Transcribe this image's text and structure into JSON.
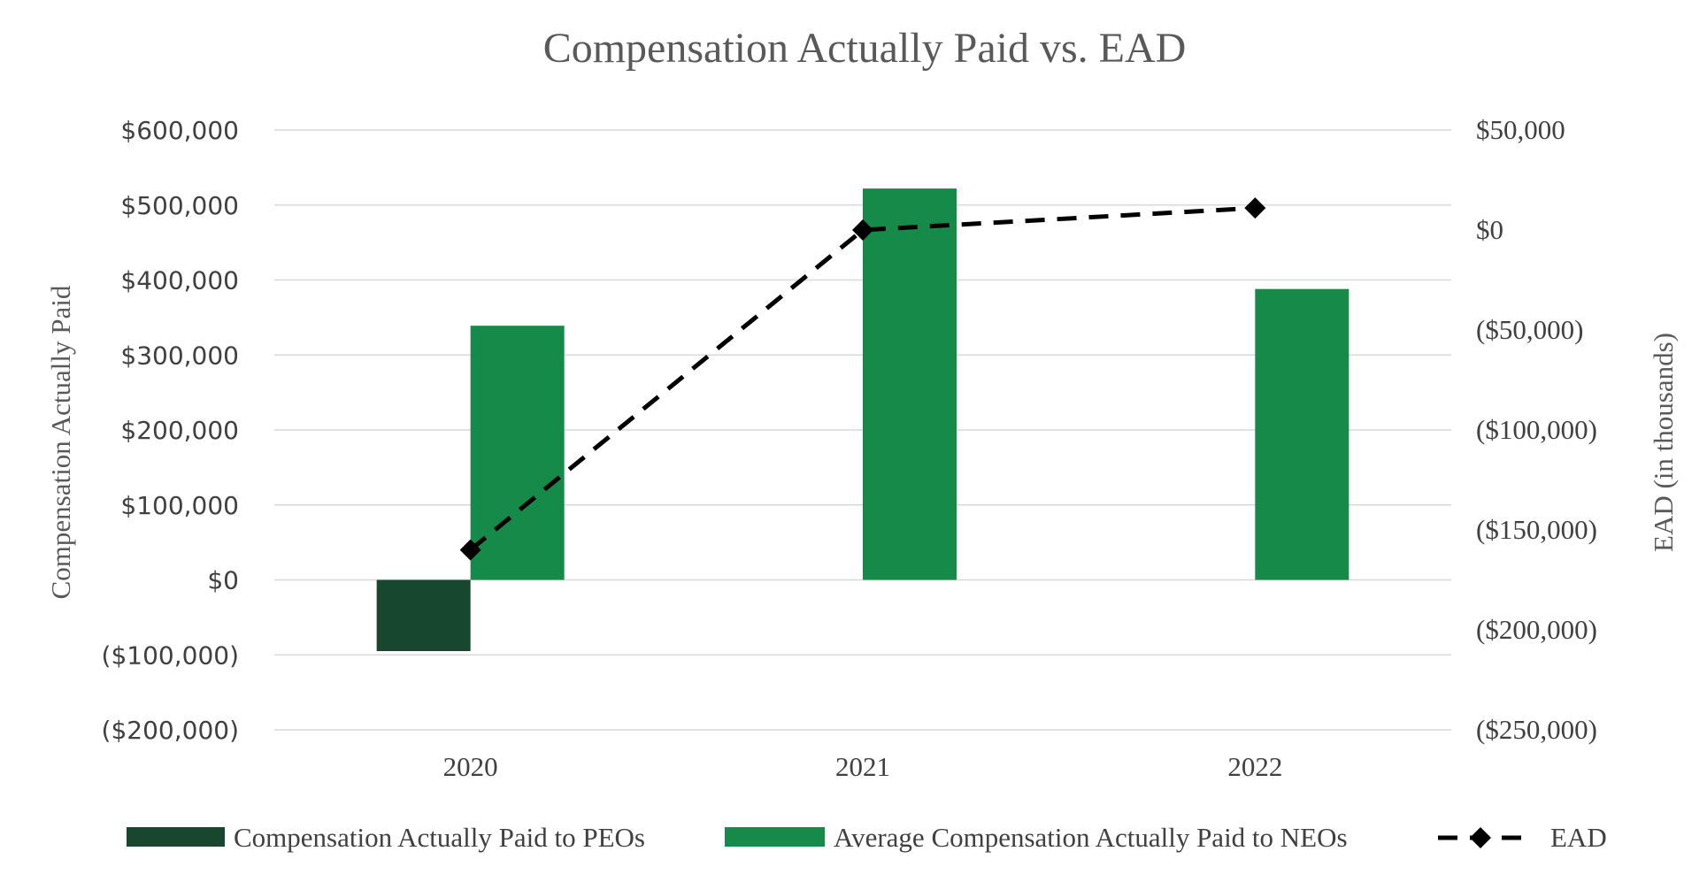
{
  "chart_data": {
    "type": "bar",
    "title": "Compensation Actually Paid vs. EAD",
    "categories": [
      "2020",
      "2021",
      "2022"
    ],
    "ylabel": "Compensation Actually Paid",
    "y2label": "EAD (in thousands)",
    "ylim": [
      -200000,
      600000
    ],
    "y2lim": [
      -250000,
      50000
    ],
    "yticks": [
      "$600,000",
      "$500,000",
      "$400,000",
      "$300,000",
      "$200,000",
      "$100,000",
      "$0",
      "($100,000)",
      "($200,000)"
    ],
    "y2ticks": [
      "$50,000",
      "$0",
      "($50,000)",
      "($100,000)",
      "($150,000)",
      "($200,000)",
      "($250,000)"
    ],
    "grid": true,
    "legend_position": "bottom",
    "series": [
      {
        "name": "Compensation Actually Paid to PEOs",
        "type": "bar",
        "axis": "left",
        "color": "#17472f",
        "values": [
          -95000,
          null,
          null
        ]
      },
      {
        "name": "Average Compensation Actually Paid to NEOs",
        "type": "bar",
        "axis": "left",
        "color": "#168a48",
        "values": [
          339000,
          522000,
          388000
        ]
      },
      {
        "name": "EAD",
        "type": "line",
        "axis": "right",
        "style": "dashed",
        "marker": "diamond",
        "color": "#000000",
        "values": [
          -160000,
          0,
          11000
        ]
      }
    ]
  }
}
